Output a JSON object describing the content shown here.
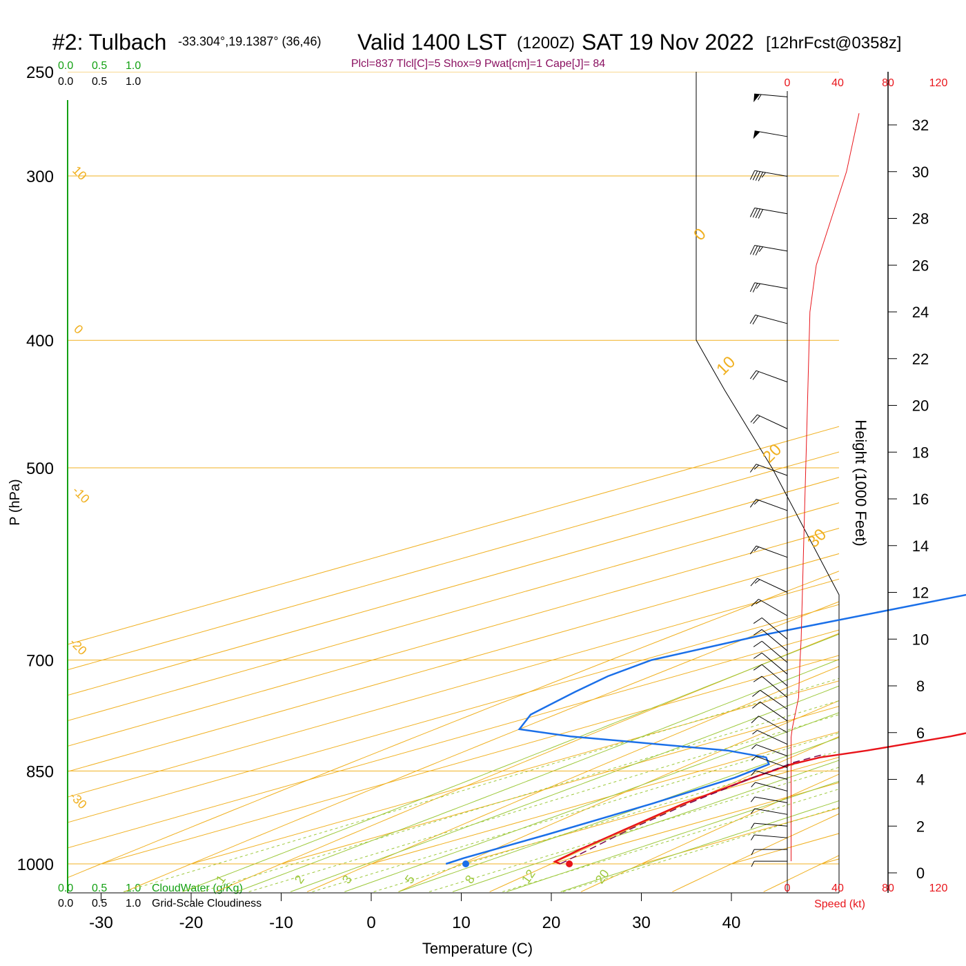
{
  "header": {
    "station": "#2: Tulbach",
    "coords": "-33.304°,19.1387° (36,46)",
    "valid": "Valid 1400 LST",
    "zulu": "(1200Z)",
    "date": "SAT 19 Nov 2022",
    "forecast": "[12hrFcst@0358z]"
  },
  "params": "Plcl=837 Tlcl[C]=5 Shox=9 Pwat[cm]=1 Cape[J]= 84",
  "colors": {
    "temperature": "#e8141a",
    "dewpoint": "#1a6fe8",
    "parcel": "#7a0a50",
    "isobar": "#f0b020",
    "isotherm": "#f0b020",
    "dry_adiabat": "#9cc83a",
    "moist_adiabat": "#9cc83a",
    "mixing_ratio": "#9cc83a",
    "cloud_scale": "#12a012",
    "speed": "#e8141a"
  },
  "cloud_scale": {
    "top_green": [
      "0.0",
      "0.5",
      "1.0"
    ],
    "top_black": [
      "0.0",
      "0.5",
      "1.0"
    ],
    "bottom_green": [
      "0.0",
      "0.5",
      "1.0"
    ],
    "bottom_black": [
      "0.0",
      "0.5",
      "1.0"
    ],
    "cloudwater_label": "CloudWater (g/Kg)",
    "cloudiness_label": "Grid-Scale Cloudiness"
  },
  "chart_data": {
    "type": "line",
    "title": "#2: Tulbach Valid 1400 LST (1200Z) SAT 19 Nov 2022",
    "xlabel": "Temperature (C)",
    "ylabel": "P (hPa)",
    "xlim": [
      -30,
      40
    ],
    "ylim": [
      1000,
      250
    ],
    "yscale": "log",
    "x_ticks": [
      -30,
      -20,
      -10,
      0,
      10,
      20,
      30,
      40
    ],
    "p_ticks": [
      250,
      300,
      400,
      500,
      700,
      850,
      1000
    ],
    "isotherm_labels": [
      "10",
      "0",
      "-10",
      "-20",
      "-30",
      "0",
      "10",
      "20",
      "30"
    ],
    "mixing_ratio_labels": [
      "1",
      "2",
      "3",
      "5",
      "8",
      "12",
      "20"
    ],
    "series": [
      {
        "name": "Temperature",
        "points": [
          [
            21.0,
            1000
          ],
          [
            19.5,
            996
          ],
          [
            17.5,
            975
          ],
          [
            14.5,
            940
          ],
          [
            11.0,
            900
          ],
          [
            8.5,
            860
          ],
          [
            7.5,
            840
          ],
          [
            8.0,
            830
          ],
          [
            10.5,
            820
          ],
          [
            14.2,
            800
          ],
          [
            15.2,
            790
          ],
          [
            15.5,
            760
          ],
          [
            15.2,
            720
          ],
          [
            14.0,
            670
          ],
          [
            11.5,
            610
          ],
          [
            7.5,
            550
          ],
          [
            3.0,
            500
          ],
          [
            -2.0,
            450
          ],
          [
            -6.0,
            400
          ],
          [
            -10.5,
            360
          ],
          [
            -15.5,
            330
          ],
          [
            -19.5,
            300
          ],
          [
            -24.0,
            273
          ],
          [
            -26.8,
            262
          ]
        ]
      },
      {
        "name": "Dewpoint",
        "points": [
          [
            8.3,
            1000
          ],
          [
            8.0,
            990
          ],
          [
            8.0,
            950
          ],
          [
            7.5,
            900
          ],
          [
            6.5,
            860
          ],
          [
            5.0,
            840
          ],
          [
            2.0,
            830
          ],
          [
            -5.0,
            820
          ],
          [
            -28.0,
            800
          ],
          [
            -36.5,
            790
          ],
          [
            -41.0,
            770
          ],
          [
            -45.0,
            740
          ],
          [
            -47.5,
            720
          ],
          [
            -49.0,
            700
          ],
          [
            -46.5,
            670
          ],
          [
            -39.0,
            620
          ],
          [
            -32.5,
            560
          ],
          [
            -29.5,
            500
          ],
          [
            -33.0,
            470
          ],
          [
            -40.5,
            430
          ],
          [
            -46.0,
            400
          ],
          [
            -55.0,
            370
          ],
          [
            -61.0,
            350
          ],
          [
            -65.0,
            330
          ],
          [
            -70.0,
            300
          ],
          [
            -76.0,
            273
          ],
          [
            -80.5,
            262
          ]
        ]
      },
      {
        "name": "Parcel",
        "points": [
          [
            21.0,
            1000
          ],
          [
            15.0,
            940
          ],
          [
            11.5,
            900
          ],
          [
            8.5,
            860
          ],
          [
            7.0,
            837
          ],
          [
            7.2,
            825
          ]
        ]
      }
    ],
    "markers": [
      {
        "name": "surface-temperature",
        "t": 22.0,
        "p": 1000
      },
      {
        "name": "surface-dewpoint",
        "t": 10.5,
        "p": 1000
      }
    ],
    "height": {
      "label": "Height (1000 Feet)",
      "ticks": [
        0,
        2,
        4,
        6,
        8,
        10,
        12,
        14,
        16,
        18,
        20,
        22,
        24,
        26,
        28,
        30,
        32
      ],
      "range": [
        -0.5,
        33.5
      ]
    },
    "wind_speed": {
      "label": "Speed (kt)",
      "ticks": [
        0,
        40,
        80,
        120
      ],
      "profile": [
        [
          3,
          0.5
        ],
        [
          3,
          3
        ],
        [
          3,
          5.8
        ],
        [
          4,
          6.2
        ],
        [
          9,
          7.5
        ],
        [
          10,
          9
        ],
        [
          11,
          10
        ],
        [
          12,
          12
        ],
        [
          13,
          14
        ],
        [
          14,
          16
        ],
        [
          15,
          18
        ],
        [
          16,
          20
        ],
        [
          17,
          22
        ],
        [
          18,
          24
        ],
        [
          23,
          26
        ],
        [
          35,
          28
        ],
        [
          47,
          30
        ],
        [
          57,
          32.5
        ]
      ]
    },
    "wind_barbs": [
      {
        "ft": 0.5,
        "kt": 5,
        "dir": 270
      },
      {
        "ft": 1.0,
        "kt": 5,
        "dir": 270
      },
      {
        "ft": 1.5,
        "kt": 5,
        "dir": 275
      },
      {
        "ft": 2.0,
        "kt": 5,
        "dir": 275
      },
      {
        "ft": 2.5,
        "kt": 5,
        "dir": 280
      },
      {
        "ft": 3.0,
        "kt": 5,
        "dir": 280
      },
      {
        "ft": 3.5,
        "kt": 5,
        "dir": 285
      },
      {
        "ft": 4.0,
        "kt": 5,
        "dir": 285
      },
      {
        "ft": 4.5,
        "kt": 5,
        "dir": 290
      },
      {
        "ft": 5.0,
        "kt": 5,
        "dir": 290
      },
      {
        "ft": 5.5,
        "kt": 5,
        "dir": 295
      },
      {
        "ft": 6.0,
        "kt": 10,
        "dir": 300
      },
      {
        "ft": 6.5,
        "kt": 10,
        "dir": 305
      },
      {
        "ft": 7.0,
        "kt": 10,
        "dir": 305
      },
      {
        "ft": 7.5,
        "kt": 10,
        "dir": 310
      },
      {
        "ft": 8.0,
        "kt": 10,
        "dir": 310
      },
      {
        "ft": 8.5,
        "kt": 10,
        "dir": 310
      },
      {
        "ft": 9.0,
        "kt": 10,
        "dir": 310
      },
      {
        "ft": 9.5,
        "kt": 10,
        "dir": 310
      },
      {
        "ft": 10.0,
        "kt": 10,
        "dir": 310
      },
      {
        "ft": 11.0,
        "kt": 15,
        "dir": 300
      },
      {
        "ft": 12.0,
        "kt": 15,
        "dir": 295
      },
      {
        "ft": 13.5,
        "kt": 15,
        "dir": 290
      },
      {
        "ft": 15.5,
        "kt": 15,
        "dir": 290
      },
      {
        "ft": 17.0,
        "kt": 15,
        "dir": 290
      },
      {
        "ft": 19.0,
        "kt": 20,
        "dir": 295
      },
      {
        "ft": 21.0,
        "kt": 20,
        "dir": 290
      },
      {
        "ft": 23.5,
        "kt": 20,
        "dir": 285
      },
      {
        "ft": 25.0,
        "kt": 25,
        "dir": 280
      },
      {
        "ft": 26.6,
        "kt": 35,
        "dir": 280
      },
      {
        "ft": 28.2,
        "kt": 40,
        "dir": 280
      },
      {
        "ft": 29.8,
        "kt": 45,
        "dir": 280
      },
      {
        "ft": 31.5,
        "kt": 50,
        "dir": 280
      },
      {
        "ft": 33.2,
        "kt": 55,
        "dir": 275
      }
    ]
  }
}
